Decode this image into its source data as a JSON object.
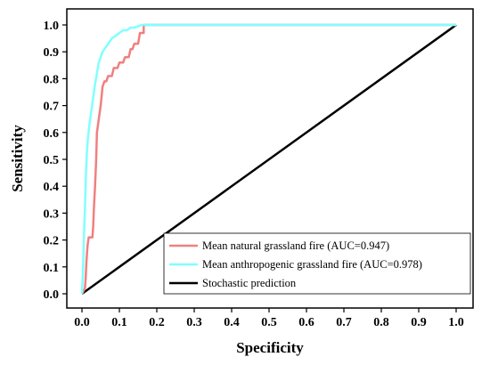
{
  "chart_data": {
    "type": "line",
    "title": "",
    "xlabel": "Specificity",
    "ylabel": "Sensitivity",
    "xlim": [
      0.0,
      1.0
    ],
    "ylim": [
      0.0,
      1.0
    ],
    "x_ticks": [
      "0.0",
      "0.1",
      "0.2",
      "0.3",
      "0.4",
      "0.5",
      "0.6",
      "0.7",
      "0.8",
      "0.9",
      "1.0"
    ],
    "y_ticks": [
      "0.0",
      "0.1",
      "0.2",
      "0.3",
      "0.4",
      "0.5",
      "0.6",
      "0.7",
      "0.8",
      "0.9",
      "1.0"
    ],
    "grid": false,
    "legend_position": "bottom-right",
    "series": [
      {
        "name": "Mean natural grassland fire (AUC=0.947)",
        "color": "#f08080",
        "x": [
          0.0,
          0.008,
          0.01,
          0.012,
          0.015,
          0.018,
          0.022,
          0.025,
          0.028,
          0.03,
          0.032,
          0.035,
          0.038,
          0.04,
          0.045,
          0.05,
          0.055,
          0.06,
          0.065,
          0.07,
          0.075,
          0.08,
          0.085,
          0.09,
          0.095,
          0.1,
          0.105,
          0.11,
          0.115,
          0.12,
          0.125,
          0.13,
          0.135,
          0.14,
          0.145,
          0.15,
          0.155,
          0.16,
          0.165,
          0.165,
          0.2,
          1.0
        ],
        "y": [
          0.0,
          0.02,
          0.06,
          0.12,
          0.18,
          0.21,
          0.21,
          0.21,
          0.21,
          0.25,
          0.32,
          0.4,
          0.5,
          0.6,
          0.65,
          0.7,
          0.77,
          0.79,
          0.79,
          0.81,
          0.81,
          0.81,
          0.84,
          0.84,
          0.84,
          0.86,
          0.86,
          0.86,
          0.88,
          0.88,
          0.88,
          0.91,
          0.91,
          0.93,
          0.93,
          0.93,
          0.97,
          0.97,
          0.97,
          1.0,
          1.0,
          1.0
        ]
      },
      {
        "name": "Mean anthropogenic grassland fire (AUC=0.978)",
        "color": "#80ffff",
        "x": [
          0.0,
          0.003,
          0.005,
          0.008,
          0.01,
          0.013,
          0.016,
          0.02,
          0.025,
          0.03,
          0.035,
          0.04,
          0.045,
          0.05,
          0.055,
          0.06,
          0.065,
          0.07,
          0.08,
          0.09,
          0.1,
          0.11,
          0.12,
          0.13,
          0.14,
          0.15,
          0.16,
          0.17,
          1.0
        ],
        "y": [
          0.0,
          0.1,
          0.2,
          0.32,
          0.42,
          0.52,
          0.58,
          0.63,
          0.68,
          0.73,
          0.78,
          0.82,
          0.86,
          0.88,
          0.9,
          0.91,
          0.92,
          0.93,
          0.95,
          0.96,
          0.97,
          0.98,
          0.98,
          0.99,
          0.99,
          0.995,
          1.0,
          1.0,
          1.0
        ]
      },
      {
        "name": "Stochastic prediction",
        "color": "#000000",
        "x": [
          0.0,
          1.0
        ],
        "y": [
          0.0,
          1.0
        ]
      }
    ]
  }
}
